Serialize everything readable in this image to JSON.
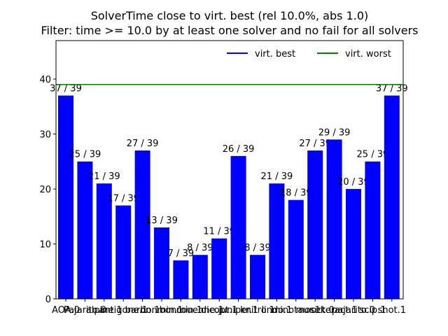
{
  "chart_data": {
    "type": "bar",
    "title": "SolverTime close to virt. best (rel 10.0%, abs 1.0)",
    "subtitle": "Filter: time >= 10.0 by at least one solver and no fail for all solvers",
    "categories": [
      "AOA.0",
      "Pajarito.0",
      "alpine.1",
      "antigone.1",
      "baron.1",
      "bonmin.1",
      "bonmin.1",
      "couenne.1",
      "dicopt.1",
      "juniper.1",
      "knitro.1",
      "lindo.1",
      "minotaur.1",
      "mosek.0",
      "octeract.1",
      "pajarito.0",
      "scip.1",
      "shot.1"
    ],
    "values": [
      37,
      25,
      21,
      17,
      27,
      13,
      7,
      8,
      11,
      26,
      8,
      21,
      18,
      27,
      29,
      20,
      25,
      37
    ],
    "total": 39,
    "bar_labels": [
      "37 / 39",
      "25 / 39",
      "21 / 39",
      "17 / 39",
      "27 / 39",
      "13 / 39",
      "7 / 39",
      "8 / 39",
      "11 / 39",
      "26 / 39",
      "8 / 39",
      "21 / 39",
      "18 / 39",
      "27 / 39",
      "29 / 39",
      "20 / 39",
      "25 / 39",
      "37 / 39"
    ],
    "ylim": [
      0,
      47
    ],
    "yticks": [
      0,
      10,
      20,
      30,
      40
    ],
    "lines": [
      {
        "name": "virt. best",
        "value": 39,
        "color": "#0000ff"
      },
      {
        "name": "virt. worst",
        "value": 39,
        "color": "#008000"
      }
    ],
    "bar_color": "#0000ff",
    "legend_position": "top-right",
    "grid": false
  }
}
